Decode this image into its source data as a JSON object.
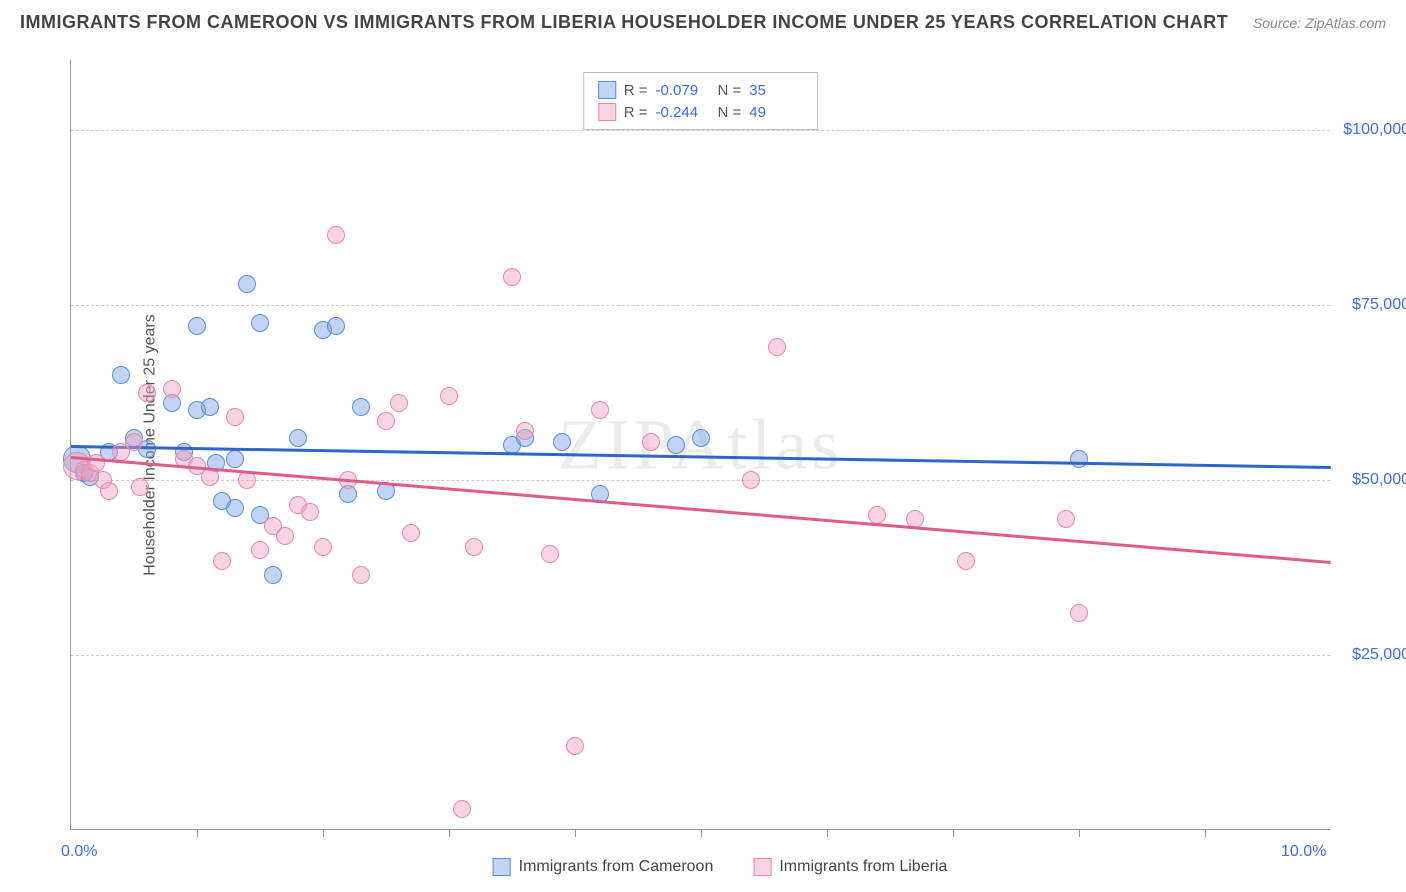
{
  "title": "IMMIGRANTS FROM CAMEROON VS IMMIGRANTS FROM LIBERIA HOUSEHOLDER INCOME UNDER 25 YEARS CORRELATION CHART",
  "source": "Source: ZipAtlas.com",
  "watermark": "ZIPAtlas",
  "chart": {
    "type": "scatter",
    "ylabel": "Householder Income Under 25 years",
    "xlim": [
      0,
      10
    ],
    "ylim": [
      0,
      110000
    ],
    "xtick_labels": [
      {
        "pos": 0,
        "label": "0.0%"
      },
      {
        "pos": 10,
        "label": "10.0%"
      }
    ],
    "xtick_marks": [
      1,
      2,
      3,
      4,
      5,
      6,
      7,
      8,
      9
    ],
    "ytick_labels": [
      {
        "pos": 25000,
        "label": "$25,000"
      },
      {
        "pos": 50000,
        "label": "$50,000"
      },
      {
        "pos": 75000,
        "label": "$75,000"
      },
      {
        "pos": 100000,
        "label": "$100,000"
      }
    ],
    "grid_color": "#cccccc",
    "background_color": "#ffffff",
    "series": [
      {
        "name": "Immigrants from Cameroon",
        "color_fill": "rgba(120,160,230,0.45)",
        "color_stroke": "#5e8ed6",
        "line_color": "#2f66c9",
        "marker_r": 9,
        "R": "-0.079",
        "N": "35",
        "trend": {
          "x1": 0,
          "y1": 55000,
          "x2": 10,
          "y2": 52000
        },
        "points": [
          {
            "x": 0.05,
            "y": 53000,
            "r": 14
          },
          {
            "x": 0.1,
            "y": 51000
          },
          {
            "x": 0.15,
            "y": 50500
          },
          {
            "x": 0.3,
            "y": 54000
          },
          {
            "x": 0.4,
            "y": 65000
          },
          {
            "x": 0.5,
            "y": 56000
          },
          {
            "x": 0.6,
            "y": 54500
          },
          {
            "x": 0.8,
            "y": 61000
          },
          {
            "x": 0.9,
            "y": 54000
          },
          {
            "x": 1.0,
            "y": 72000
          },
          {
            "x": 1.0,
            "y": 60000
          },
          {
            "x": 1.1,
            "y": 60500
          },
          {
            "x": 1.15,
            "y": 52500
          },
          {
            "x": 1.2,
            "y": 47000
          },
          {
            "x": 1.3,
            "y": 53000
          },
          {
            "x": 1.3,
            "y": 46000
          },
          {
            "x": 1.4,
            "y": 78000
          },
          {
            "x": 1.5,
            "y": 72500
          },
          {
            "x": 1.5,
            "y": 45000
          },
          {
            "x": 1.6,
            "y": 36500
          },
          {
            "x": 1.8,
            "y": 56000
          },
          {
            "x": 2.0,
            "y": 71500
          },
          {
            "x": 2.1,
            "y": 72000
          },
          {
            "x": 2.2,
            "y": 48000
          },
          {
            "x": 2.3,
            "y": 60500
          },
          {
            "x": 2.5,
            "y": 48500
          },
          {
            "x": 3.5,
            "y": 55000
          },
          {
            "x": 3.6,
            "y": 56000
          },
          {
            "x": 3.9,
            "y": 55500
          },
          {
            "x": 4.2,
            "y": 48000
          },
          {
            "x": 4.8,
            "y": 55000
          },
          {
            "x": 5.0,
            "y": 56000
          },
          {
            "x": 8.0,
            "y": 53000
          }
        ]
      },
      {
        "name": "Immigrants from Liberia",
        "color_fill": "rgba(240,160,190,0.45)",
        "color_stroke": "#e48bad",
        "line_color": "#e05a8a",
        "marker_r": 9,
        "R": "-0.244",
        "N": "49",
        "trend": {
          "x1": 0,
          "y1": 53500,
          "x2": 10,
          "y2": 38500
        },
        "points": [
          {
            "x": 0.05,
            "y": 52000,
            "r": 14
          },
          {
            "x": 0.1,
            "y": 51500
          },
          {
            "x": 0.15,
            "y": 51000
          },
          {
            "x": 0.2,
            "y": 52500
          },
          {
            "x": 0.25,
            "y": 50000
          },
          {
            "x": 0.3,
            "y": 48500
          },
          {
            "x": 0.4,
            "y": 54000
          },
          {
            "x": 0.5,
            "y": 55500
          },
          {
            "x": 0.55,
            "y": 49000
          },
          {
            "x": 0.6,
            "y": 62500
          },
          {
            "x": 0.8,
            "y": 63000
          },
          {
            "x": 0.9,
            "y": 53000
          },
          {
            "x": 1.0,
            "y": 52000
          },
          {
            "x": 1.1,
            "y": 50500
          },
          {
            "x": 1.2,
            "y": 38500
          },
          {
            "x": 1.3,
            "y": 59000
          },
          {
            "x": 1.4,
            "y": 50000
          },
          {
            "x": 1.5,
            "y": 40000
          },
          {
            "x": 1.6,
            "y": 43500
          },
          {
            "x": 1.7,
            "y": 42000
          },
          {
            "x": 1.8,
            "y": 46500
          },
          {
            "x": 1.9,
            "y": 45500
          },
          {
            "x": 2.0,
            "y": 40500
          },
          {
            "x": 2.1,
            "y": 85000
          },
          {
            "x": 2.2,
            "y": 50000
          },
          {
            "x": 2.3,
            "y": 36500
          },
          {
            "x": 2.5,
            "y": 58500
          },
          {
            "x": 2.6,
            "y": 61000
          },
          {
            "x": 2.7,
            "y": 42500
          },
          {
            "x": 3.0,
            "y": 62000
          },
          {
            "x": 3.1,
            "y": 3000
          },
          {
            "x": 3.2,
            "y": 40500
          },
          {
            "x": 3.5,
            "y": 79000
          },
          {
            "x": 3.6,
            "y": 57000
          },
          {
            "x": 3.8,
            "y": 39500
          },
          {
            "x": 4.0,
            "y": 12000
          },
          {
            "x": 4.2,
            "y": 60000
          },
          {
            "x": 4.6,
            "y": 55500
          },
          {
            "x": 5.4,
            "y": 50000
          },
          {
            "x": 5.6,
            "y": 69000
          },
          {
            "x": 6.4,
            "y": 45000
          },
          {
            "x": 6.7,
            "y": 44500
          },
          {
            "x": 7.1,
            "y": 38500
          },
          {
            "x": 7.9,
            "y": 44500
          },
          {
            "x": 8.0,
            "y": 31000
          }
        ]
      }
    ]
  },
  "stats_labels": {
    "R": "R =",
    "N": "N ="
  }
}
